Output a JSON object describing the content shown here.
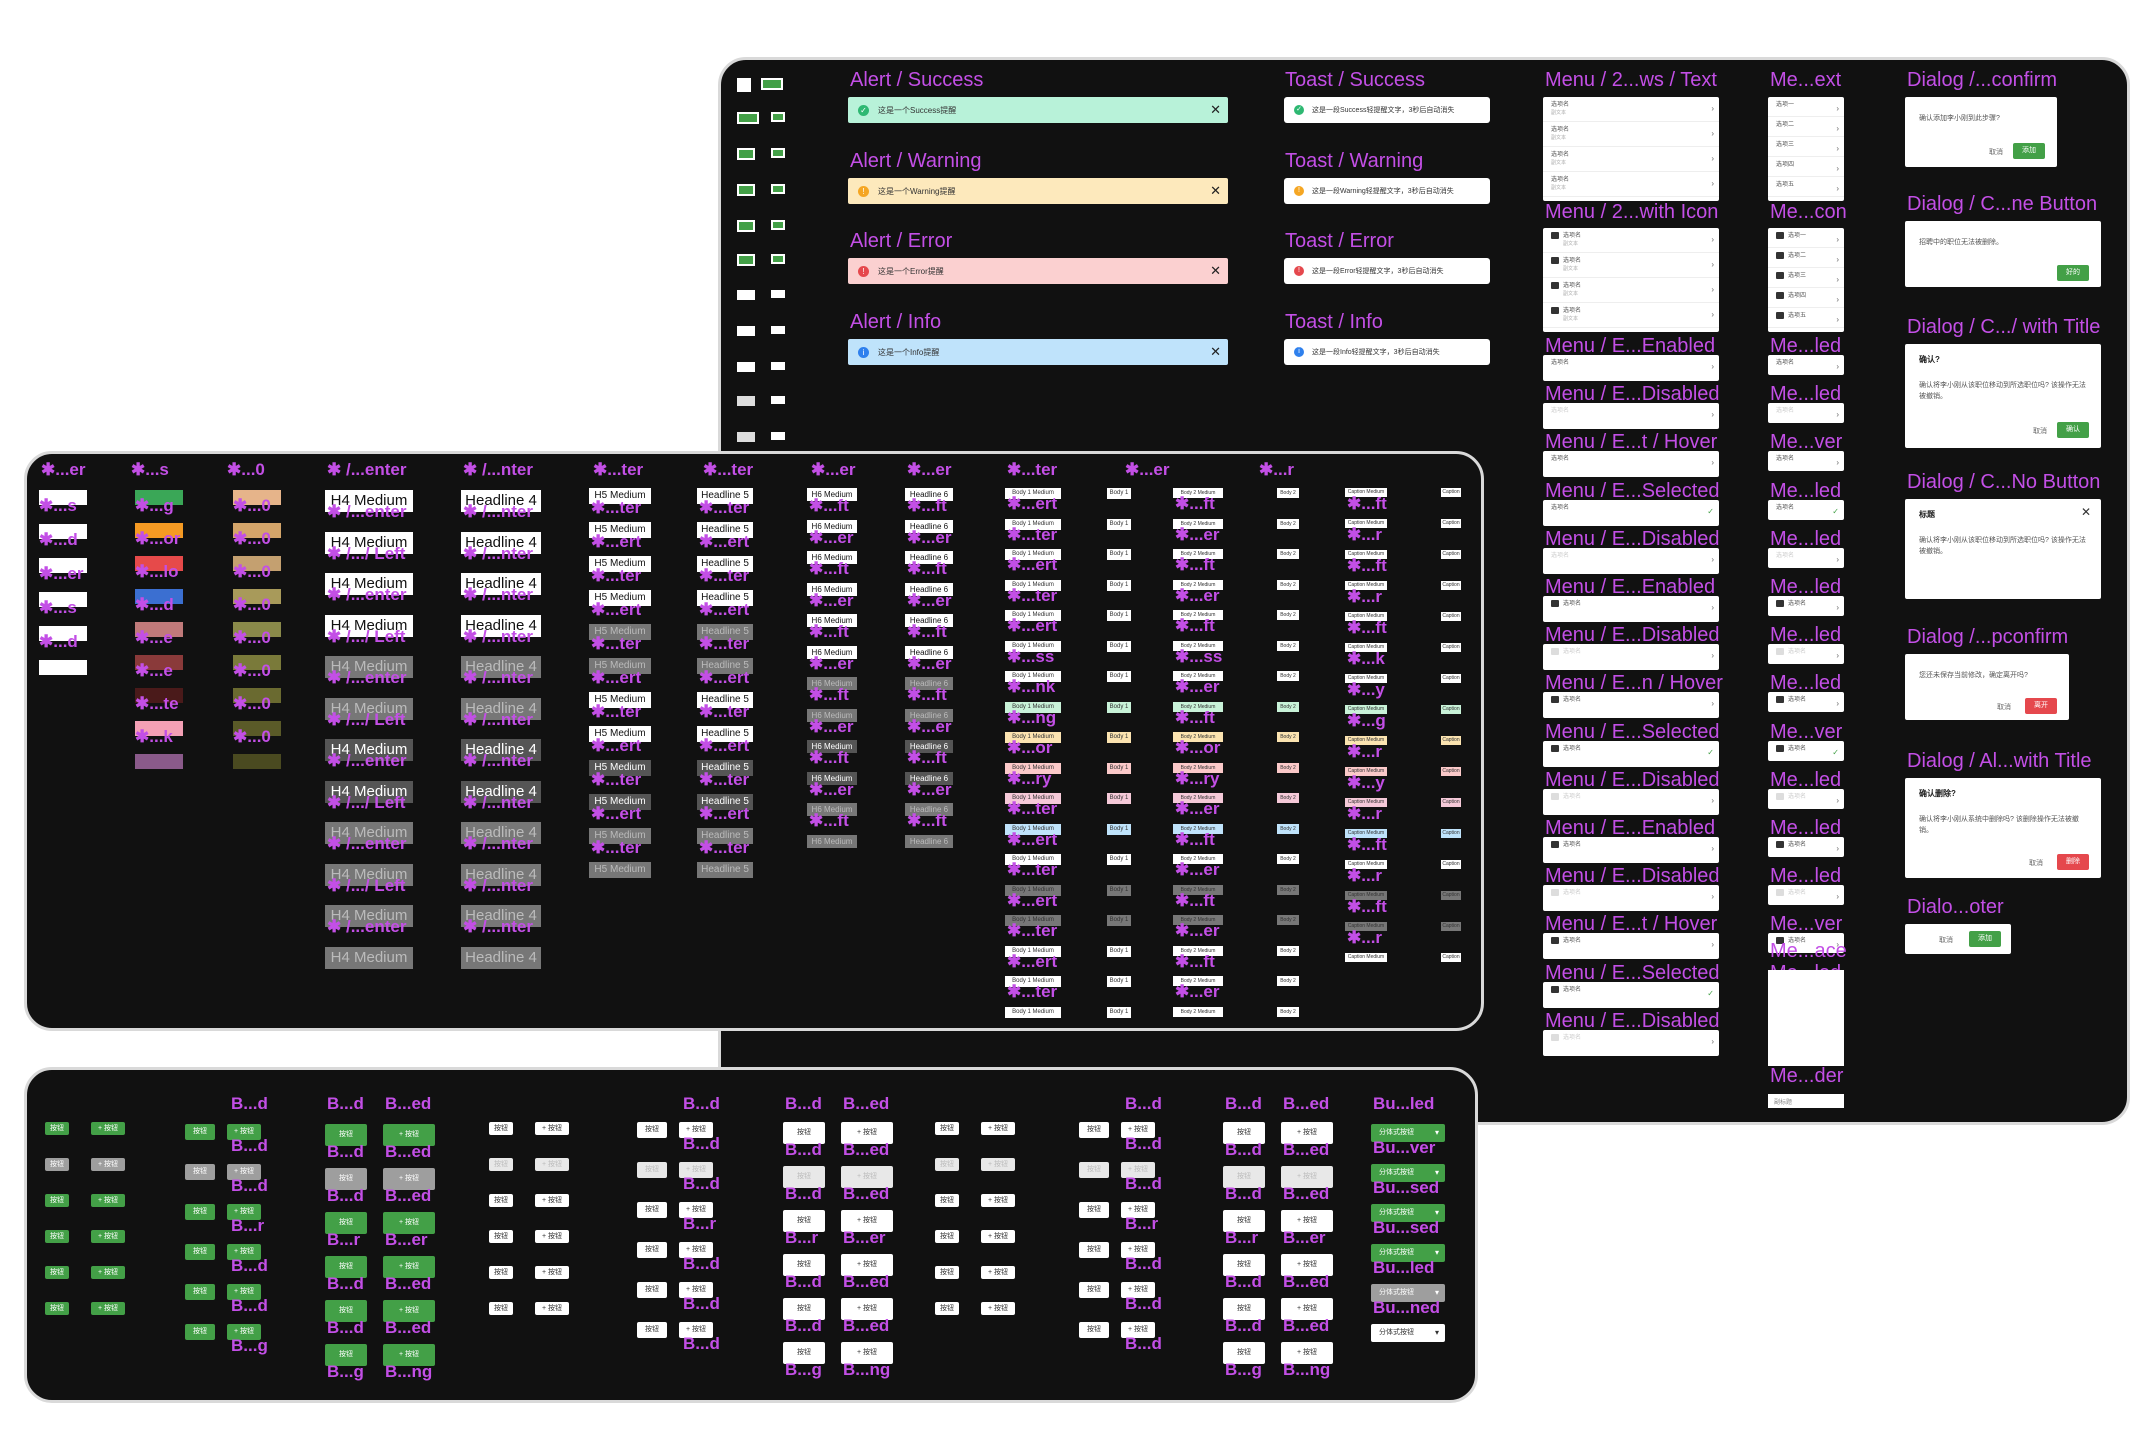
{
  "frames": {
    "top": {
      "name": "components-top"
    },
    "mid": {
      "name": "typography-mid"
    },
    "bot": {
      "name": "buttons-bottom"
    }
  },
  "alerts": [
    {
      "label": "Alert / Success",
      "text": "这是一个Success提醒",
      "bg": "#b8f2d9",
      "icon_bg": "#2eb872",
      "icon": "✓"
    },
    {
      "label": "Alert / Warning",
      "text": "这是一个Warning提醒",
      "bg": "#fde9bc",
      "icon_bg": "#f5a623",
      "icon": "!"
    },
    {
      "label": "Alert / Error",
      "text": "这是一个Error提醒",
      "bg": "#fbd0d0",
      "icon_bg": "#e5484d",
      "icon": "!"
    },
    {
      "label": "Alert / Info",
      "text": "这是一个Info提醒",
      "bg": "#bfe3fb",
      "icon_bg": "#2f80ed",
      "icon": "i"
    }
  ],
  "toasts": [
    {
      "label": "Toast / Success",
      "text": "这是一段Success轻提醒文字，3秒后自动消失",
      "icon_bg": "#2eb872",
      "icon": "✓"
    },
    {
      "label": "Toast / Warning",
      "text": "这是一段Warning轻提醒文字，3秒后自动消失",
      "icon_bg": "#f5a623",
      "icon": "!"
    },
    {
      "label": "Toast / Error",
      "text": "这是一段Error轻提醒文字，3秒后自动消失",
      "icon_bg": "#e5484d",
      "icon": "!"
    },
    {
      "label": "Toast / Info",
      "text": "这是一段Info轻提醒文字，3秒后自动消失",
      "icon_bg": "#2f80ed",
      "icon": "i"
    }
  ],
  "menu_col1": {
    "title": "Menu / 2...ws / Text",
    "title2": "Menu / 2...with Icon",
    "item": "选项名",
    "sub": "副文本",
    "states": [
      "Menu / E...Enabled",
      "Menu / E...Disabled",
      "Menu / E...t / Hover",
      "Menu / E...Selected",
      "Menu / E...Disabled",
      "Menu / E...Enabled",
      "Menu / E...Disabled",
      "Menu / E...n / Hover",
      "Menu / E...Selected",
      "Menu / E...Disabled",
      "Menu / E...Enabled",
      "Menu / E...Disabled",
      "Menu / E...t / Hover",
      "Menu / E...Selected",
      "Menu / E...Disabled"
    ]
  },
  "menu_col2": {
    "title": "Me...ext",
    "title2": "Me...con",
    "items": [
      "选项一",
      "选项二",
      "选项三",
      "选项四",
      "选项五"
    ],
    "states": [
      "Me...led",
      "Me...led",
      "Me...ver",
      "Me...led",
      "Me...led",
      "Me...led",
      "Me...led",
      "Me...led",
      "Me...ver",
      "Me...led",
      "Me...led",
      "Me...led",
      "Me...ver",
      "Me...led",
      "Me...led"
    ],
    "item": "选项名",
    "space_label": "Me...ace",
    "divider_label": "Me...der",
    "divider_text": "副标题"
  },
  "dialogs": {
    "d1": {
      "label": "Dialog /...confirm",
      "text": "确认添加李小刚到此步骤?",
      "cancel": "取消",
      "ok": "添加"
    },
    "d2": {
      "label": "Dialog / C...ne Button",
      "text": "招聘中的职位无法被删除。",
      "ok": "好的"
    },
    "d3": {
      "label": "Dialog / C.../ with Title",
      "title": "确认?",
      "text": "确认将李小刚从该职位移动到所选职位吗? 该操作无法被撤销。",
      "cancel": "取消",
      "ok": "确认"
    },
    "d4": {
      "label": "Dialog / C...No Button",
      "title": "标题",
      "text": "确认将李小刚从该职位移动到所选职位吗? 该操作无法被撤销。"
    },
    "d5": {
      "label": "Dialog /...pconfirm",
      "text": "您还未保存当前修改，确定离开吗?",
      "cancel": "取消",
      "ok": "离开"
    },
    "d6": {
      "label": "Dialog / Al...with Title",
      "title": "确认删除?",
      "text": "确认将李小刚从系统中删除吗? 该删除操作无法被撤销。",
      "cancel": "取消",
      "ok": "删除"
    },
    "d7": {
      "label": "Dialo...oter",
      "cancel": "取消",
      "ok": "添加"
    }
  },
  "mid": {
    "col_labels": [
      "✱...er",
      "✱...s",
      "✱...0",
      "✱ /...enter",
      "✱ /...nter",
      "✱...ter",
      "✱...ter",
      "✱...er",
      "✱...er",
      "✱...ter",
      "✱...er",
      "✱...r"
    ],
    "lbl_s": [
      "✱...s",
      "✱...d",
      "✱...er",
      "✱...s",
      "✱...d"
    ],
    "lbl_color": [
      "✱...g",
      "✱...or",
      "✱...lo",
      "✱...d",
      "✱...e",
      "✱...e",
      "✱...te",
      "✱...k"
    ],
    "lbl_0": "✱...0",
    "h4_rows": [
      {
        "t": "H4 Medium",
        "l": "✱ /...enter"
      },
      {
        "t": "H4 Medium",
        "l": "✱ /.../ Left"
      },
      {
        "t": "H4 Medium",
        "l": "✱ /...enter"
      },
      {
        "t": "H4 Medium",
        "l": "✱ /.../ Left"
      },
      {
        "t": "H4 Medium",
        "l": "✱ /...enter"
      },
      {
        "t": "H4 Medium",
        "l": "✱ /.../ Left"
      },
      {
        "t": "H4 Medium",
        "l": "✱ /...enter"
      },
      {
        "t": "H4 Medium",
        "l": "✱ /.../ Left"
      },
      {
        "t": "H4 Medium",
        "l": "✱ /...enter"
      },
      {
        "t": "H4 Medium",
        "l": "✱ /.../ Left"
      },
      {
        "t": "H4 Medium",
        "l": "✱ /...enter"
      },
      {
        "t": "H4 Medium",
        "l": ""
      }
    ],
    "hl4_text": "Headline 4",
    "hl4_labels": [
      "✱ /...nter",
      "✱ /...nter",
      "✱ /...nter",
      "✱ /...nter",
      "✱ /...nter",
      "✱ /...nter",
      "✱ /...nter",
      "✱ /...nter",
      "✱ /...nter",
      "✱ /...nter",
      "✱ /...nter"
    ],
    "h5_text": "H5 Medium",
    "hl5_text": "Headline 5",
    "h6_text": "H6 Medium",
    "hl6_text": "Headline 6",
    "b1m_text": "Body 1 Medium",
    "b1_text": "Body 1",
    "b2m_text": "Body 2 Medium",
    "b2_text": "Body 2",
    "cm_text": "Caption Medium",
    "c_text": "Caption",
    "lbl_ter": "✱...ter",
    "lbl_ert": "✱...ert",
    "lbl_er": "✱...er",
    "lbl_ft": "✱...ft",
    "lbl_ss": "✱...ss",
    "lbl_nk": "✱...nk",
    "lbl_ng": "✱...ng",
    "lbl_or": "✱...or",
    "lbl_ry": "✱...ry",
    "lbl_y": "✱...y",
    "lbl_r": "✱...r",
    "lbl_k": "✱...k",
    "lbl_g": "✱...g",
    "swatches": [
      "#3aa757",
      "#f59a23",
      "#e64a4a",
      "#3b6fd1",
      "#c07a7a",
      "#8a3a3a",
      "#4a1a1a",
      "#f4a0b5",
      "#8a5a8a"
    ],
    "tan_swatches": [
      "#e6b48a",
      "#d4a56a",
      "#c4a070",
      "#a89a5a",
      "#8a8a4a",
      "#7a7a3a",
      "#6a6a30",
      "#5a5a28",
      "#4a4a20"
    ]
  },
  "buttons": {
    "btn": "按钮",
    "plus_btn": "+ 按钮",
    "split": "分体式按钮",
    "labels": {
      "bd": "B...d",
      "bed": "B...ed",
      "br": "B...r",
      "ber": "B...er",
      "bg": "B...g",
      "bng": "B...ng",
      "buled": "Bu...led",
      "buver": "Bu...ver",
      "bused": "Bu...sed",
      "buned": "Bu...ned"
    }
  }
}
